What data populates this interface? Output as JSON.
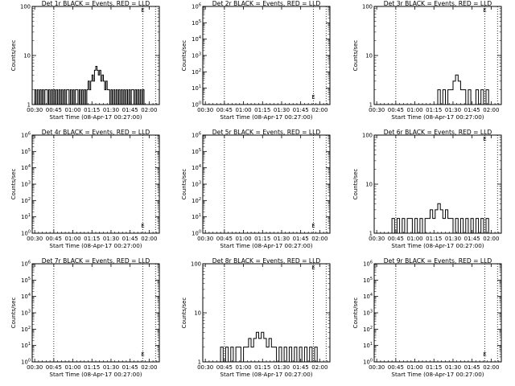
{
  "chart_data": [
    {
      "type": "line",
      "title": "Det 1r BLACK = Events, RED = LLD",
      "xlabel": "Start Time (08-Apr-17 00:27:00)",
      "ylabel": "Counts/sec",
      "x_ticks": [
        "00:30",
        "00:45",
        "01:00",
        "01:15",
        "01:30",
        "01:45",
        "02:00"
      ],
      "xlim_minutes": [
        28,
        128
      ],
      "y_scale": "log",
      "ylim": [
        1,
        100
      ],
      "y_ticks": [
        "1",
        "10",
        "100"
      ],
      "vlines_minutes": [
        45,
        115
      ],
      "series": [
        {
          "color": "#000000",
          "kind": "step",
          "x": [
            28,
            30,
            31,
            32,
            33,
            34,
            35,
            36,
            37,
            38,
            39,
            40,
            41,
            42,
            43,
            44,
            45,
            46,
            47,
            48,
            49,
            50,
            51,
            52,
            53,
            54,
            55,
            56,
            57,
            58,
            59,
            60,
            61,
            62,
            63,
            64,
            65,
            66,
            67,
            68,
            69,
            70,
            71,
            72,
            73,
            74,
            75,
            76,
            77,
            78,
            79,
            80,
            81,
            82,
            83,
            84,
            85,
            86,
            87,
            88,
            89,
            90,
            91,
            92,
            93,
            94,
            95,
            96,
            97,
            98,
            99,
            100,
            101,
            102,
            103,
            104,
            105,
            106,
            107,
            108,
            109,
            110,
            111,
            112,
            113,
            114,
            115,
            116,
            117
          ],
          "values": [
            1,
            2,
            1,
            2,
            1,
            2,
            1,
            2,
            1,
            2,
            2,
            1,
            2,
            1,
            2,
            1,
            2,
            1,
            2,
            1,
            2,
            1,
            2,
            1,
            2,
            1,
            2,
            2,
            1,
            2,
            1,
            2,
            1,
            2,
            2,
            1,
            2,
            1,
            2,
            1,
            2,
            1,
            2,
            3,
            2,
            3,
            4,
            3,
            5,
            6,
            5,
            4,
            5,
            3,
            4,
            3,
            2,
            3,
            2,
            2,
            1,
            2,
            1,
            2,
            1,
            2,
            1,
            2,
            1,
            2,
            1,
            2,
            1,
            2,
            1,
            2,
            1,
            2,
            2,
            1,
            2,
            1,
            2,
            1,
            2,
            1,
            2,
            1,
            1
          ]
        }
      ]
    },
    {
      "type": "line",
      "title": "Det 2r BLACK = Events, RED = LLD",
      "xlabel": "Start Time (08-Apr-17 00:27:00)",
      "ylabel": "Counts/sec",
      "x_ticks": [
        "00:30",
        "00:45",
        "01:00",
        "01:15",
        "01:30",
        "01:45",
        "02:00"
      ],
      "xlim_minutes": [
        28,
        128
      ],
      "y_scale": "log",
      "ylim": [
        1,
        1000000
      ],
      "y_ticks": [
        "10^0",
        "10^1",
        "10^2",
        "10^3",
        "10^4",
        "10^5",
        "10^6"
      ],
      "vlines_minutes": [
        45,
        115
      ],
      "series": []
    },
    {
      "type": "line",
      "title": "Det 3r BLACK = Events, RED = LLD",
      "xlabel": "Start Time (08-Apr-17 00:27:00)",
      "ylabel": "Counts/sec",
      "x_ticks": [
        "00:30",
        "00:45",
        "01:00",
        "01:15",
        "01:30",
        "01:45",
        "02:00"
      ],
      "xlim_minutes": [
        28,
        128
      ],
      "y_scale": "log",
      "ylim": [
        1,
        100
      ],
      "y_ticks": [
        "1",
        "10",
        "100"
      ],
      "vlines_minutes": [
        45,
        115
      ],
      "series": [
        {
          "color": "#000000",
          "kind": "step",
          "x": [
            76,
            78,
            80,
            82,
            84,
            86,
            88,
            90,
            92,
            94,
            96,
            98,
            100,
            102,
            104,
            106,
            108,
            110,
            112,
            114,
            116,
            118,
            120
          ],
          "values": [
            1,
            2,
            1,
            2,
            1,
            2,
            2,
            3,
            4,
            3,
            2,
            2,
            1,
            2,
            1,
            1,
            2,
            1,
            2,
            1,
            2,
            1,
            1
          ]
        }
      ]
    },
    {
      "type": "line",
      "title": "Det 4r BLACK = Events, RED = LLD",
      "xlabel": "Start Time (08-Apr-17 00:27:00)",
      "ylabel": "Counts/sec",
      "x_ticks": [
        "00:30",
        "00:45",
        "01:00",
        "01:15",
        "01:30",
        "01:45",
        "02:00"
      ],
      "xlim_minutes": [
        28,
        128
      ],
      "y_scale": "log",
      "ylim": [
        1,
        1000000
      ],
      "y_ticks": [
        "10^0",
        "10^1",
        "10^2",
        "10^3",
        "10^4",
        "10^5",
        "10^6"
      ],
      "vlines_minutes": [
        45,
        115
      ],
      "series": []
    },
    {
      "type": "line",
      "title": "Det 5r BLACK = Events, RED = LLD",
      "xlabel": "Start Time (08-Apr-17 00:27:00)",
      "ylabel": "Counts/sec",
      "x_ticks": [
        "00:30",
        "00:45",
        "01:00",
        "01:15",
        "01:30",
        "01:45",
        "02:00"
      ],
      "xlim_minutes": [
        28,
        128
      ],
      "y_scale": "log",
      "ylim": [
        1,
        1000000
      ],
      "y_ticks": [
        "10^0",
        "10^1",
        "10^2",
        "10^3",
        "10^4",
        "10^5",
        "10^6"
      ],
      "vlines_minutes": [
        45,
        115
      ],
      "series": []
    },
    {
      "type": "line",
      "title": "Det 6r BLACK = Events, RED = LLD",
      "xlabel": "Start Time (08-Apr-17 00:27:00)",
      "ylabel": "Counts/sec",
      "x_ticks": [
        "00:30",
        "00:45",
        "01:00",
        "01:15",
        "01:30",
        "01:45",
        "02:00"
      ],
      "xlim_minutes": [
        28,
        128
      ],
      "y_scale": "log",
      "ylim": [
        1,
        100
      ],
      "y_ticks": [
        "1",
        "10",
        "100"
      ],
      "vlines_minutes": [
        45,
        115
      ],
      "series": [
        {
          "color": "#000000",
          "kind": "step",
          "x": [
            40,
            42,
            44,
            46,
            48,
            50,
            52,
            54,
            56,
            58,
            60,
            62,
            64,
            66,
            68,
            70,
            72,
            74,
            76,
            78,
            80,
            82,
            84,
            86,
            88,
            90,
            92,
            94,
            96,
            98,
            100,
            102,
            104,
            106,
            108,
            110,
            112,
            114,
            116,
            118
          ],
          "values": [
            1,
            2,
            1,
            2,
            1,
            2,
            1,
            2,
            2,
            1,
            2,
            1,
            2,
            1,
            2,
            2,
            3,
            2,
            3,
            4,
            3,
            2,
            3,
            2,
            2,
            1,
            2,
            1,
            2,
            1,
            2,
            1,
            2,
            1,
            2,
            1,
            2,
            1,
            2,
            1
          ]
        }
      ]
    },
    {
      "type": "line",
      "title": "Det 7r BLACK = Events, RED = LLD",
      "xlabel": "Start Time (08-Apr-17 00:27:00)",
      "ylabel": "Counts/sec",
      "x_ticks": [
        "00:30",
        "00:45",
        "01:00",
        "01:15",
        "01:30",
        "01:45",
        "02:00"
      ],
      "xlim_minutes": [
        28,
        128
      ],
      "y_scale": "log",
      "ylim": [
        1,
        1000000
      ],
      "y_ticks": [
        "10^0",
        "10^1",
        "10^2",
        "10^3",
        "10^4",
        "10^5",
        "10^6"
      ],
      "vlines_minutes": [
        45,
        115
      ],
      "series": []
    },
    {
      "type": "line",
      "title": "Det 8r BLACK = Events, RED = LLD",
      "xlabel": "Start Time (08-Apr-17 00:27:00)",
      "ylabel": "Counts/sec",
      "x_ticks": [
        "00:30",
        "00:45",
        "01:00",
        "01:15",
        "01:30",
        "01:45",
        "02:00"
      ],
      "xlim_minutes": [
        28,
        128
      ],
      "y_scale": "log",
      "ylim": [
        1,
        100
      ],
      "y_ticks": [
        "1",
        "10",
        "100"
      ],
      "vlines_minutes": [
        45,
        115
      ],
      "series": [
        {
          "color": "#000000",
          "kind": "step",
          "x": [
            40,
            42,
            44,
            46,
            48,
            50,
            52,
            54,
            56,
            58,
            60,
            62,
            64,
            66,
            68,
            70,
            72,
            74,
            76,
            78,
            80,
            82,
            84,
            86,
            88,
            90,
            92,
            94,
            96,
            98,
            100,
            102,
            104,
            106,
            108,
            110,
            112,
            114,
            116,
            118
          ],
          "values": [
            1,
            2,
            1,
            2,
            1,
            2,
            1,
            2,
            2,
            1,
            2,
            2,
            3,
            2,
            3,
            4,
            3,
            4,
            3,
            2,
            3,
            2,
            2,
            1,
            2,
            1,
            2,
            1,
            2,
            1,
            2,
            1,
            2,
            1,
            2,
            1,
            2,
            1,
            2,
            1
          ]
        }
      ]
    },
    {
      "type": "line",
      "title": "Det 9r BLACK = Events, RED = LLD",
      "xlabel": "Start Time (08-Apr-17 00:27:00)",
      "ylabel": "Counts/sec",
      "x_ticks": [
        "00:30",
        "00:45",
        "01:00",
        "01:15",
        "01:30",
        "01:45",
        "02:00"
      ],
      "xlim_minutes": [
        28,
        128
      ],
      "y_scale": "log",
      "ylim": [
        1,
        1000000
      ],
      "y_ticks": [
        "10^0",
        "10^1",
        "10^2",
        "10^3",
        "10^4",
        "10^5",
        "10^6"
      ],
      "vlines_minutes": [
        45,
        115
      ],
      "series": []
    }
  ]
}
